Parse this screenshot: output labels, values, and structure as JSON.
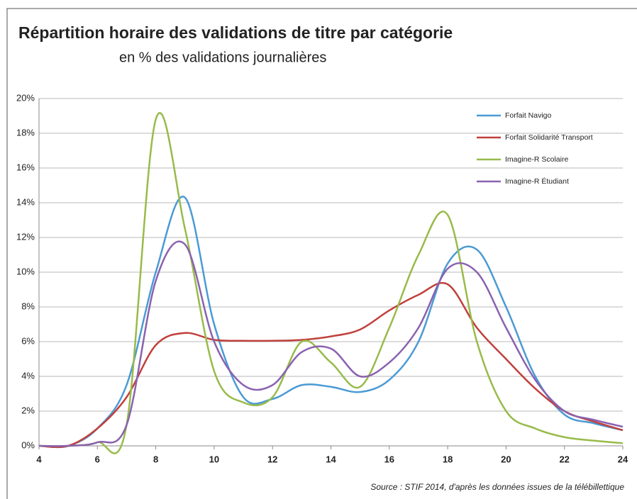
{
  "chart_data": {
    "type": "line",
    "title": "Répartition horaire des validations de titre par catégorie",
    "subtitle": "en % des validations journalières",
    "source": "Source : STIF 2014,  d'après les données issues de la télébillettique",
    "x": [
      4,
      5,
      6,
      7,
      8,
      9,
      10,
      11,
      12,
      13,
      14,
      15,
      16,
      17,
      18,
      19,
      20,
      21,
      22,
      23,
      24
    ],
    "series": [
      {
        "name": "Forfait Navigo",
        "color": "#4a9ad4",
        "values": [
          0,
          0,
          1.0,
          3.5,
          10,
          14.3,
          7,
          2.8,
          2.7,
          3.5,
          3.4,
          3.1,
          3.8,
          6,
          10.5,
          11.3,
          8,
          4,
          1.8,
          1.3,
          0.9
        ]
      },
      {
        "name": "Forfait Solidarité Transport",
        "color": "#c0403c",
        "values": [
          0,
          0,
          1.0,
          2.8,
          5.8,
          6.5,
          6.1,
          6.05,
          6.05,
          6.1,
          6.3,
          6.7,
          7.8,
          8.7,
          9.3,
          6.8,
          5.0,
          3.3,
          2.0,
          1.4,
          0.9
        ]
      },
      {
        "name": "Imagine-R Scolaire",
        "color": "#98bb4a",
        "values": [
          0,
          0,
          0.2,
          1.2,
          18.8,
          12.5,
          4.3,
          2.5,
          2.8,
          6.0,
          4.8,
          3.4,
          6.8,
          11,
          13.3,
          6,
          2.0,
          1.0,
          0.5,
          0.3,
          0.15
        ]
      },
      {
        "name": "Imagine-R Étudiant",
        "color": "#8a62b0",
        "values": [
          0,
          0,
          0.2,
          1.2,
          9.5,
          11.6,
          6,
          3.5,
          3.5,
          5.4,
          5.6,
          4.0,
          4.8,
          6.8,
          10.2,
          10,
          6.8,
          3.8,
          2.0,
          1.5,
          1.1
        ]
      }
    ],
    "xlim": [
      4,
      24
    ],
    "xticks": [
      4,
      6,
      8,
      10,
      12,
      14,
      16,
      18,
      20,
      22,
      24
    ],
    "ylim": [
      0,
      20
    ],
    "yticks": [
      {
        "value": 0,
        "label": "0%"
      },
      {
        "value": 2,
        "label": "2%"
      },
      {
        "value": 4,
        "label": "4%"
      },
      {
        "value": 6,
        "label": "6%"
      },
      {
        "value": 8,
        "label": "8%"
      },
      {
        "value": 10,
        "label": "10%"
      },
      {
        "value": 12,
        "label": "12%"
      },
      {
        "value": 14,
        "label": "14%"
      },
      {
        "value": 16,
        "label": "16%"
      },
      {
        "value": 18,
        "label": "18%"
      },
      {
        "value": 20,
        "label": "20%"
      }
    ],
    "grid": true,
    "legend": "upper right"
  }
}
